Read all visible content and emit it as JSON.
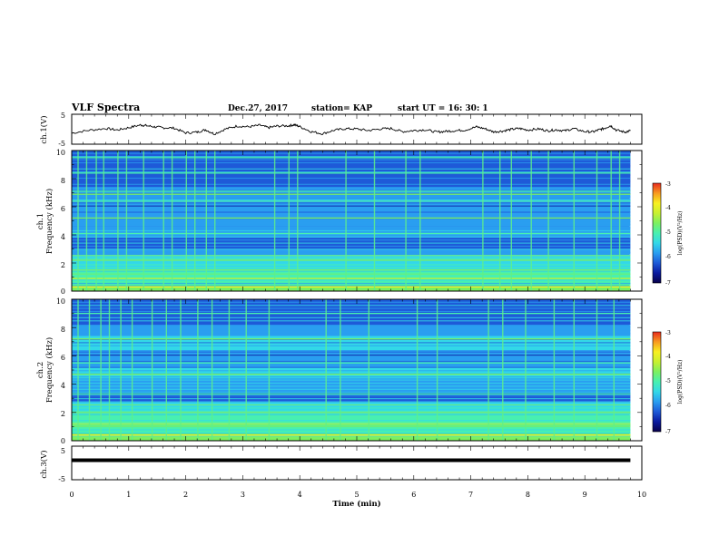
{
  "header": {
    "title": "VLF Spectra",
    "date": "Dec.27, 2017",
    "station": "station= KAP",
    "start": "start  UT =   16: 30: 1"
  },
  "colors": {
    "background": "#ffffff",
    "axes": "#000000",
    "trace": "#000000",
    "colormap": [
      "#08004a",
      "#0a1aa0",
      "#1e5ad8",
      "#2a9ef0",
      "#33d8e8",
      "#48f0b0",
      "#7cf060",
      "#c8f030",
      "#f8f020",
      "#f89a20",
      "#e82a1e",
      "#ffffff"
    ]
  },
  "chart_data": [
    {
      "panel": "ch1-waveform",
      "type": "line",
      "ylabel": "ch.1(V)",
      "ylim": [
        -5,
        5
      ],
      "yticks": [
        "5",
        "-5"
      ],
      "xlim": [
        0,
        10
      ],
      "points": [
        [
          0.0,
          -1.5
        ],
        [
          0.3,
          -0.4
        ],
        [
          0.6,
          0.3
        ],
        [
          0.8,
          -0.3
        ],
        [
          1.0,
          0.6
        ],
        [
          1.2,
          1.6
        ],
        [
          1.3,
          1.4
        ],
        [
          1.45,
          0.9
        ],
        [
          1.6,
          0.6
        ],
        [
          1.8,
          0.4
        ],
        [
          2.0,
          -1.4
        ],
        [
          2.2,
          -1.1
        ],
        [
          2.35,
          -0.2
        ],
        [
          2.5,
          -1.8
        ],
        [
          2.7,
          0.1
        ],
        [
          2.9,
          1.2
        ],
        [
          3.1,
          0.9
        ],
        [
          3.3,
          1.5
        ],
        [
          3.45,
          0.6
        ],
        [
          3.6,
          1.2
        ],
        [
          3.8,
          1.3
        ],
        [
          3.9,
          1.7
        ],
        [
          4.0,
          1.0
        ],
        [
          4.2,
          -0.9
        ],
        [
          4.4,
          -1.7
        ],
        [
          4.6,
          -0.4
        ],
        [
          4.8,
          0.2
        ],
        [
          5.0,
          0.1
        ],
        [
          5.2,
          -0.5
        ],
        [
          5.4,
          0.1
        ],
        [
          5.6,
          0.3
        ],
        [
          5.8,
          -0.9
        ],
        [
          6.0,
          -0.5
        ],
        [
          6.2,
          -0.2
        ],
        [
          6.4,
          -1.1
        ],
        [
          6.55,
          -0.8
        ],
        [
          6.7,
          -0.6
        ],
        [
          6.9,
          -0.3
        ],
        [
          7.1,
          0.9
        ],
        [
          7.25,
          0.2
        ],
        [
          7.4,
          -1.0
        ],
        [
          7.55,
          -0.7
        ],
        [
          7.7,
          -0.1
        ],
        [
          7.85,
          0.3
        ],
        [
          8.0,
          -0.3
        ],
        [
          8.2,
          0.1
        ],
        [
          8.35,
          -0.6
        ],
        [
          8.5,
          -0.2
        ],
        [
          8.65,
          -0.6
        ],
        [
          8.8,
          0.2
        ],
        [
          9.0,
          -0.9
        ],
        [
          9.15,
          -1.0
        ],
        [
          9.25,
          -0.2
        ],
        [
          9.35,
          0.4
        ],
        [
          9.45,
          1.4
        ],
        [
          9.55,
          -0.3
        ],
        [
          9.7,
          -1.1
        ],
        [
          9.8,
          -0.6
        ]
      ]
    },
    {
      "panel": "ch1-spectrogram",
      "type": "heatmap",
      "ylabel_line1": "ch.1",
      "ylabel_line2": "Frequency  (kHz)",
      "ylim": [
        0,
        10
      ],
      "yticks": [
        "0",
        "2",
        "4",
        "6",
        "8",
        "10"
      ],
      "xlim": [
        0,
        9.8
      ],
      "colorbar_label": "log(PSD)(V²/Hz)",
      "colorbar_ticks": [
        "-3",
        "-4",
        "-5",
        "-6",
        "-7"
      ],
      "colorbar_range": [
        -7,
        -3
      ],
      "background_level": -6.3,
      "bands": [
        {
          "freq": [
            0.0,
            0.4
          ],
          "level": -4.6
        },
        {
          "freq": [
            0.4,
            0.8
          ],
          "level": -4.9
        },
        {
          "freq": [
            0.8,
            1.4
          ],
          "level": -5.1
        },
        {
          "freq": [
            1.4,
            2.0
          ],
          "level": -5.3
        },
        {
          "freq": [
            2.0,
            2.6
          ],
          "level": -5.6
        },
        {
          "freq": [
            2.6,
            3.0
          ],
          "level": -5.8
        },
        {
          "freq": [
            3.0,
            3.8
          ],
          "level": -6.2
        },
        {
          "freq": [
            3.8,
            4.6
          ],
          "level": -5.9
        },
        {
          "freq": [
            4.6,
            5.6
          ],
          "level": -5.7
        },
        {
          "freq": [
            5.6,
            6.6
          ],
          "level": -6.0
        },
        {
          "freq": [
            6.6,
            7.4
          ],
          "level": -5.7
        },
        {
          "freq": [
            7.4,
            10.0
          ],
          "level": -6.3
        }
      ],
      "lines": [
        {
          "freq": 0.3,
          "level": -3.9
        },
        {
          "freq": 0.9,
          "level": -4.3
        },
        {
          "freq": 1.5,
          "level": -4.4
        },
        {
          "freq": 2.2,
          "level": -4.8
        },
        {
          "freq": 4.1,
          "level": -5.0
        },
        {
          "freq": 5.2,
          "level": -4.6
        },
        {
          "freq": 6.4,
          "level": -5.0
        },
        {
          "freq": 6.9,
          "level": -4.5
        },
        {
          "freq": 7.1,
          "level": -5.1
        },
        {
          "freq": 8.4,
          "level": -5.2
        },
        {
          "freq": 9.5,
          "level": -5.0
        }
      ],
      "bursts": [
        0.1,
        0.25,
        0.42,
        0.55,
        0.8,
        0.95,
        1.25,
        1.6,
        1.75,
        2.0,
        2.15,
        2.35,
        2.5,
        3.55,
        3.8,
        3.95,
        4.8,
        5.3,
        5.85,
        6.1,
        7.2,
        7.5,
        7.7,
        8.05,
        8.35,
        8.8,
        9.2,
        9.45,
        9.6
      ]
    },
    {
      "panel": "ch2-spectrogram",
      "type": "heatmap",
      "ylabel_line1": "ch.2",
      "ylabel_line2": "Frequency  (kHz)",
      "ylim": [
        0,
        10
      ],
      "yticks": [
        "0",
        "2",
        "4",
        "6",
        "8",
        "10"
      ],
      "xlim": [
        0,
        9.8
      ],
      "colorbar_label": "log(PSD)(V²/Hz)",
      "colorbar_ticks": [
        "-3",
        "-4",
        "-5",
        "-6",
        "-7"
      ],
      "colorbar_range": [
        -7,
        -3
      ],
      "background_level": -6.2,
      "bands": [
        {
          "freq": [
            0.0,
            0.5
          ],
          "level": -4.5
        },
        {
          "freq": [
            0.5,
            1.0
          ],
          "level": -4.9
        },
        {
          "freq": [
            1.0,
            1.8
          ],
          "level": -5.2
        },
        {
          "freq": [
            1.8,
            2.8
          ],
          "level": -5.6
        },
        {
          "freq": [
            2.8,
            3.4
          ],
          "level": -6.1
        },
        {
          "freq": [
            3.4,
            4.4
          ],
          "level": -5.8
        },
        {
          "freq": [
            4.4,
            5.2
          ],
          "level": -5.5
        },
        {
          "freq": [
            5.2,
            6.4
          ],
          "level": -5.9
        },
        {
          "freq": [
            6.4,
            7.4
          ],
          "level": -5.6
        },
        {
          "freq": [
            7.4,
            8.2
          ],
          "level": -6.0
        },
        {
          "freq": [
            8.2,
            10.0
          ],
          "level": -6.3
        }
      ],
      "lines": [
        {
          "freq": 0.4,
          "level": -3.8
        },
        {
          "freq": 1.1,
          "level": -4.5
        },
        {
          "freq": 2.0,
          "level": -4.7
        },
        {
          "freq": 3.3,
          "level": -4.9
        },
        {
          "freq": 4.7,
          "level": -4.6
        },
        {
          "freq": 5.5,
          "level": -5.0
        },
        {
          "freq": 7.2,
          "level": -4.8
        },
        {
          "freq": 9.0,
          "level": -5.0
        }
      ],
      "bursts": [
        0.1,
        0.3,
        0.5,
        0.65,
        0.85,
        1.05,
        1.4,
        1.65,
        1.9,
        2.2,
        2.45,
        2.75,
        3.05,
        3.45,
        4.45,
        4.7,
        5.2,
        6.05,
        6.4,
        7.3,
        7.55,
        7.95,
        8.45,
        8.8,
        9.2,
        9.5
      ]
    },
    {
      "panel": "ch3-waveform",
      "type": "line",
      "ylabel": "ch.3(V)",
      "ylim": [
        -5,
        5
      ],
      "yticks": [
        "5",
        "-5"
      ],
      "xlim": [
        0,
        10
      ],
      "xlabel": "Time  (min)",
      "xticks": [
        "0",
        "1",
        "2",
        "3",
        "4",
        "5",
        "6",
        "7",
        "8",
        "9",
        "10"
      ],
      "points": [
        [
          0.0,
          0.9
        ],
        [
          9.8,
          0.9
        ]
      ]
    }
  ]
}
